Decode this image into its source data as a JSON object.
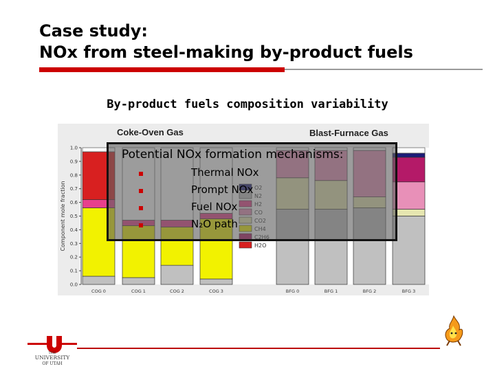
{
  "slide": {
    "title_line1": "Case study:",
    "title_line2": "NOx from steel-making by-product fuels",
    "subtitle": "By-product fuels composition variability",
    "accent_color": "#cc0000"
  },
  "overlay": {
    "title": "Potential NOx formation mechanisms:",
    "items": [
      "Thermal NOx",
      "Prompt NOx",
      "Fuel NOx",
      "N₂O path"
    ]
  },
  "logo": {
    "line1": "THE",
    "line2": "UNIVERSITY",
    "line3": "OF UTAH"
  },
  "chart_data": {
    "type": "bar",
    "stacked": true,
    "panels": [
      "Coke-Oven Gas",
      "Blast-Furnace Gas"
    ],
    "ylabel": "Component mole fraction",
    "ylim": [
      0,
      1
    ],
    "yticks": [
      "0.0",
      "0.1",
      "0.2",
      "0.3",
      "0.4",
      "0.5",
      "0.6",
      "0.7",
      "0.8",
      "0.9",
      "1.0"
    ],
    "categories": [
      "COG 0",
      "COG 1",
      "COG 2",
      "COG 3",
      "BFG 0",
      "BFG 1",
      "BFG 2",
      "BFG 3"
    ],
    "series": [
      {
        "name": "N2",
        "color": "#c0c0c0",
        "values": [
          0.06,
          0.05,
          0.14,
          0.04,
          0.55,
          0.55,
          0.56,
          0.5
        ]
      },
      {
        "name": "CH4",
        "color": "#f2f200",
        "values": [
          0.5,
          0.38,
          0.28,
          0.44,
          0.0,
          0.0,
          0.0,
          0.0
        ]
      },
      {
        "name": "CO2",
        "color": "#e6e6b0",
        "values": [
          0.0,
          0.0,
          0.0,
          0.0,
          0.23,
          0.21,
          0.08,
          0.05
        ]
      },
      {
        "name": "H2",
        "color": "#e8408c",
        "values": [
          0.06,
          0.04,
          0.05,
          0.04,
          0.0,
          0.0,
          0.0,
          0.0
        ]
      },
      {
        "name": "CO",
        "color": "#e890b8",
        "values": [
          0.0,
          0.0,
          0.0,
          0.0,
          0.2,
          0.22,
          0.34,
          0.2
        ]
      },
      {
        "name": "C2H6",
        "color": "#b41a68",
        "values": [
          0.0,
          0.0,
          0.0,
          0.0,
          0.0,
          0.0,
          0.0,
          0.18
        ]
      },
      {
        "name": "H2O",
        "color": "#d82020",
        "values": [
          0.35,
          0.0,
          0.0,
          0.0,
          0.0,
          0.0,
          0.0,
          0.0
        ]
      },
      {
        "name": "O2",
        "color": "#1c1c78",
        "values": [
          0.0,
          0.0,
          0.0,
          0.0,
          0.0,
          0.0,
          0.0,
          0.03
        ]
      }
    ],
    "legend": [
      "O2",
      "N2",
      "H2",
      "CO",
      "CO2",
      "CH4",
      "C2H6",
      "H2O"
    ],
    "legend_position": "right"
  }
}
